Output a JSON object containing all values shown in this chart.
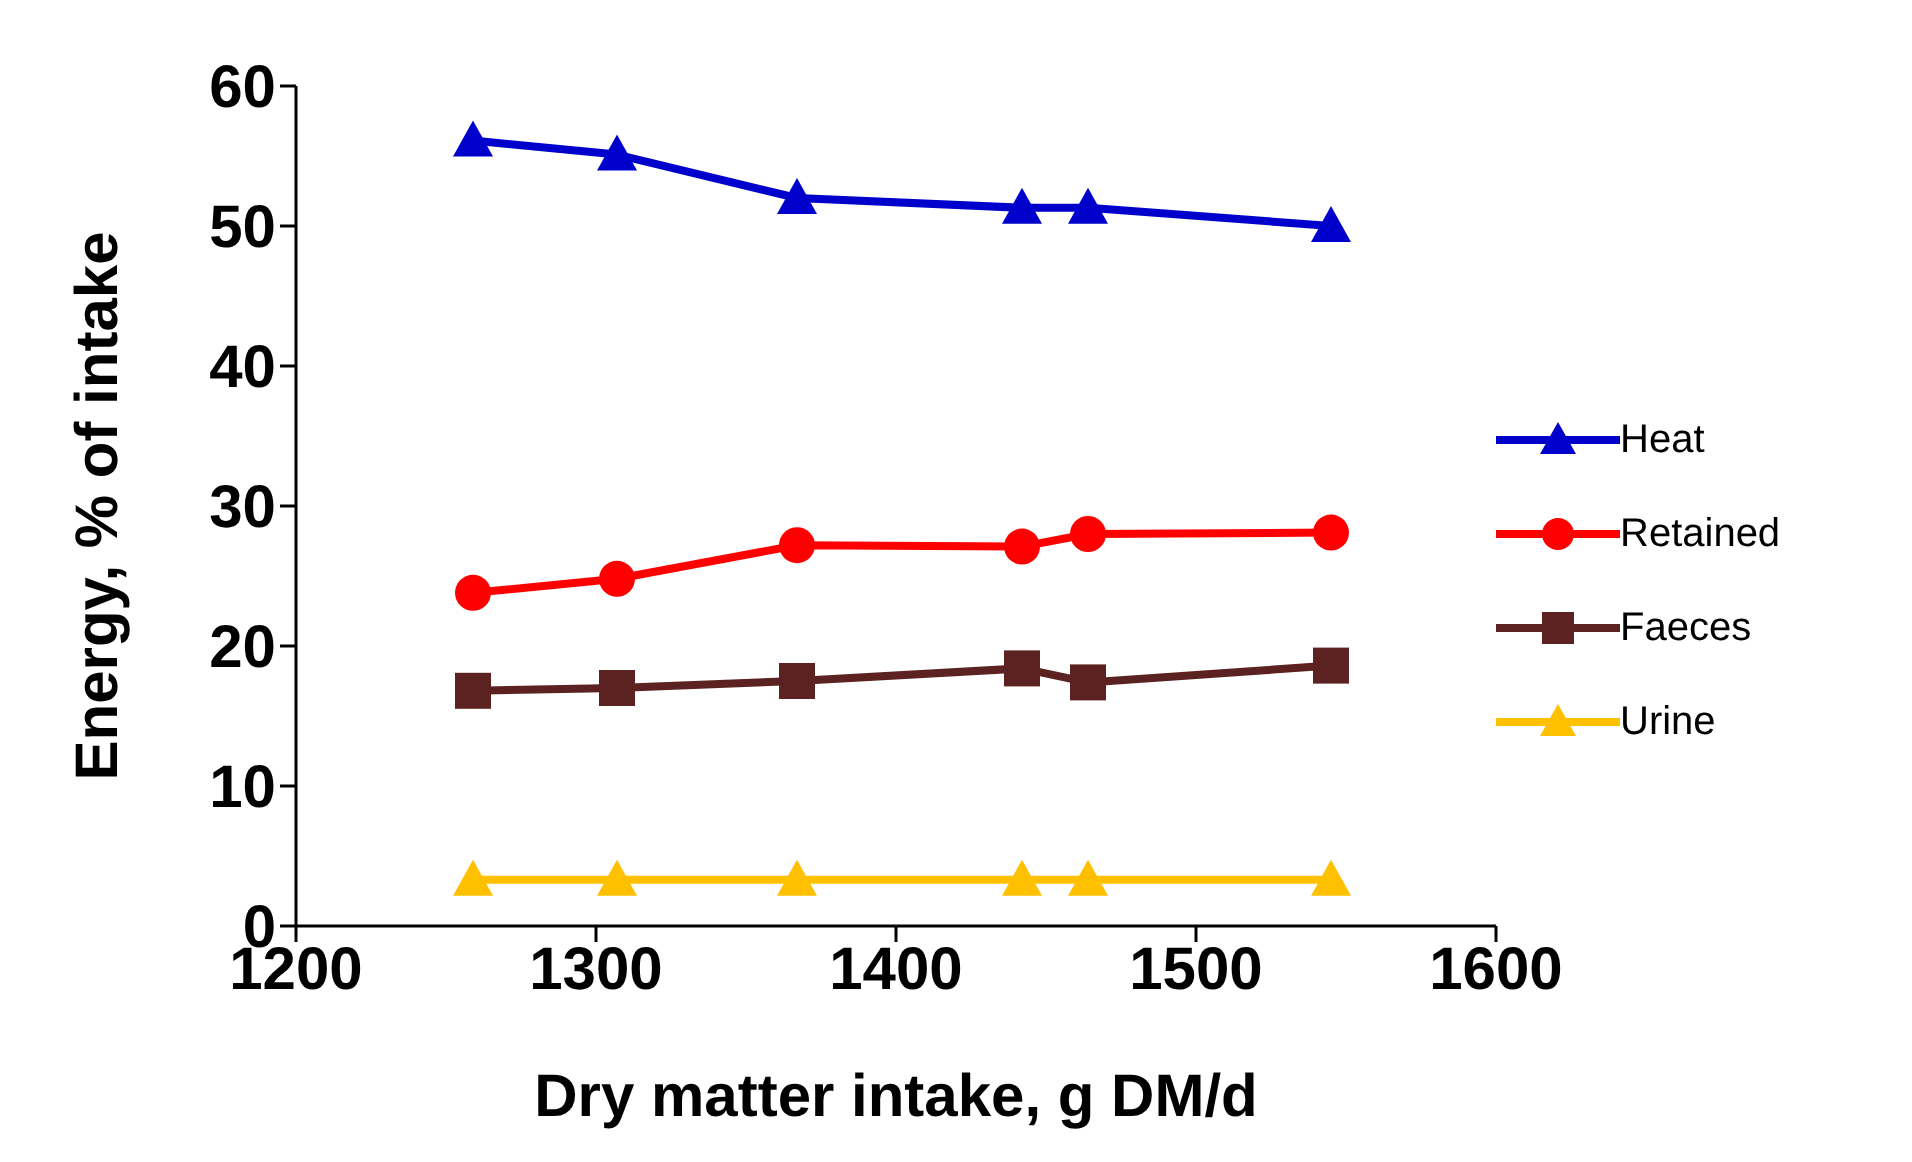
{
  "chart_data": {
    "type": "line",
    "xlabel": "Dry matter intake, g DM/d",
    "ylabel": "Energy, % of intake",
    "x": [
      1259,
      1307,
      1367,
      1442,
      1464,
      1545
    ],
    "xlim": [
      1200,
      1600
    ],
    "xticks": [
      1200,
      1300,
      1400,
      1500,
      1600
    ],
    "ylim": [
      0,
      60
    ],
    "yticks": [
      0,
      10,
      20,
      30,
      40,
      50,
      60
    ],
    "grid": false,
    "legend": "right",
    "series": [
      {
        "name": "Heat",
        "color": "#0000cc",
        "marker": "triangle",
        "values": [
          56.1,
          55.1,
          52.0,
          51.3,
          51.3,
          50.0
        ]
      },
      {
        "name": "Retained",
        "color": "#ff0000",
        "marker": "circle",
        "values": [
          23.8,
          24.8,
          27.2,
          27.1,
          28.0,
          28.1
        ]
      },
      {
        "name": "Faeces",
        "color": "#5c2222",
        "marker": "square",
        "values": [
          16.8,
          17.0,
          17.5,
          18.4,
          17.4,
          18.6
        ]
      },
      {
        "name": "Urine",
        "color": "#ffc000",
        "marker": "triangle",
        "values": [
          3.3,
          3.3,
          3.3,
          3.3,
          3.3,
          3.3
        ]
      }
    ]
  }
}
